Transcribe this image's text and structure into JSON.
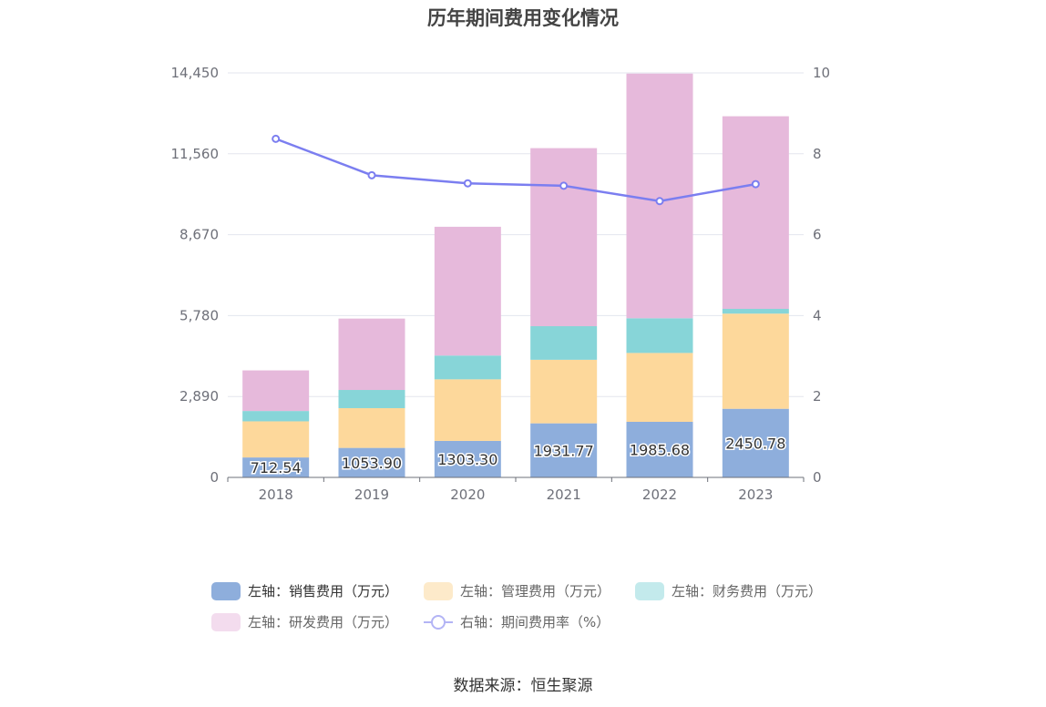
{
  "chart_data": {
    "type": "bar",
    "title": "历年期间费用变化情况",
    "categories": [
      "2018",
      "2019",
      "2020",
      "2021",
      "2022",
      "2023"
    ],
    "series": [
      {
        "name": "左轴：销售费用（万元）",
        "axis": "left",
        "color": "#8eaedc",
        "values": [
          712.54,
          1053.9,
          1303.3,
          1931.77,
          1985.68,
          2450.78
        ]
      },
      {
        "name": "左轴：管理费用（万元）",
        "axis": "left",
        "color": "#fdd89b",
        "values": [
          1290,
          1420,
          2200,
          2270,
          2460,
          3400
        ]
      },
      {
        "name": "左轴：财务费用（万元）",
        "axis": "left",
        "color": "#87d5d8",
        "values": [
          370,
          650,
          850,
          1200,
          1240,
          170
        ]
      },
      {
        "name": "左轴：研发费用（万元）",
        "axis": "left",
        "color": "#e6b9db",
        "values": [
          1450,
          2550,
          4600,
          6360,
          8740,
          6880
        ]
      },
      {
        "name": "右轴：期间费用率（%）",
        "axis": "right",
        "type": "line",
        "color": "#7b7ef0",
        "values": [
          8.37,
          7.47,
          7.27,
          7.21,
          6.83,
          7.25
        ]
      }
    ],
    "data_labels": [
      "712.54",
      "1053.90",
      "1303.30",
      "1931.77",
      "1985.68",
      "2450.78"
    ],
    "y_left": {
      "ticks": [
        "0",
        "2,890",
        "5,780",
        "8,670",
        "11,560",
        "14,450"
      ],
      "min": 0,
      "max": 14450
    },
    "y_right": {
      "ticks": [
        "0",
        "2",
        "4",
        "6",
        "8",
        "10"
      ],
      "min": 0,
      "max": 10
    },
    "grid": true,
    "legend_position": "bottom"
  },
  "legend": {
    "items": [
      {
        "label": "左轴：销售费用（万元）",
        "color": "#8eaedc",
        "kind": "bar"
      },
      {
        "label": "左轴：管理费用（万元）",
        "color": "#fdeaca",
        "kind": "bar"
      },
      {
        "label": "左轴：财务费用（万元）",
        "color": "#c3eaec",
        "kind": "bar"
      },
      {
        "label": "左轴：研发费用（万元）",
        "color": "#f3dcee",
        "kind": "bar"
      },
      {
        "label": "右轴：期间费用率（%）",
        "color": "#b3b4f5",
        "kind": "line"
      }
    ]
  },
  "footer": {
    "source": "数据来源：恒生聚源"
  }
}
